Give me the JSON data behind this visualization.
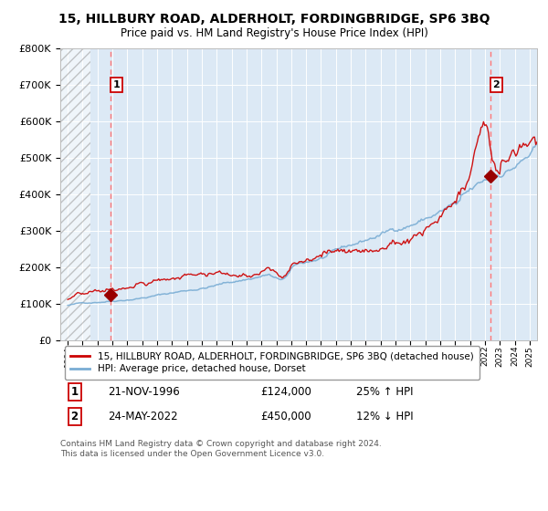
{
  "title": "15, HILLBURY ROAD, ALDERHOLT, FORDINGBRIDGE, SP6 3BQ",
  "subtitle": "Price paid vs. HM Land Registry's House Price Index (HPI)",
  "title_fontsize": 10,
  "subtitle_fontsize": 8.5,
  "bg_color": "#dce9f5",
  "hatch_region_end": 1995.5,
  "xmin": 1993.5,
  "xmax": 2025.5,
  "ymin": 0,
  "ymax": 800000,
  "yticks": [
    0,
    100000,
    200000,
    300000,
    400000,
    500000,
    600000,
    700000,
    800000
  ],
  "ytick_labels": [
    "£0",
    "£100K",
    "£200K",
    "£300K",
    "£400K",
    "£500K",
    "£600K",
    "£700K",
    "£800K"
  ],
  "sale1_x": 1996.9,
  "sale1_y": 124000,
  "sale2_x": 2022.38,
  "sale2_y": 450000,
  "red_line_color": "#cc0000",
  "blue_line_color": "#7aadd4",
  "marker_color": "#990000",
  "dashed_line_color": "#ff7777",
  "label1": "15, HILLBURY ROAD, ALDERHOLT, FORDINGBRIDGE, SP6 3BQ (detached house)",
  "label2": "HPI: Average price, detached house, Dorset",
  "note1_num": "1",
  "note1_date": "21-NOV-1996",
  "note1_price": "£124,000",
  "note1_hpi": "25% ↑ HPI",
  "note2_num": "2",
  "note2_date": "24-MAY-2022",
  "note2_price": "£450,000",
  "note2_hpi": "12% ↓ HPI",
  "footer": "Contains HM Land Registry data © Crown copyright and database right 2024.\nThis data is licensed under the Open Government Licence v3.0."
}
